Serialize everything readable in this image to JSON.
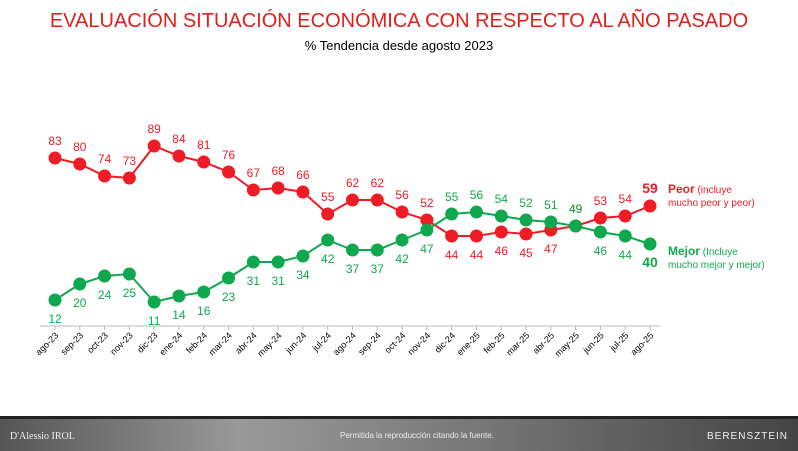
{
  "chart_data": {
    "type": "line",
    "title": "EVALUACIÓN SITUACIÓN ECONÓMICA CON RESPECTO AL AÑO PASADO",
    "subtitle": "% Tendencia desde agosto 2023",
    "categories": [
      "ago-23",
      "sep-23",
      "oct-23",
      "nov-23",
      "dic-23",
      "ene-24",
      "feb-24",
      "mar-24",
      "abr-24",
      "may-24",
      "jun-24",
      "jul-24",
      "ago-24",
      "sep-24",
      "oct-24",
      "nov-24",
      "dic-24",
      "ene-25",
      "feb-25",
      "mar-25",
      "abr-25",
      "may-25",
      "jun-25",
      "jul-25",
      "ago-25"
    ],
    "series": [
      {
        "name": "Peor",
        "color": "#ee1c25",
        "values": [
          83,
          80,
          74,
          73,
          89,
          84,
          81,
          76,
          67,
          68,
          66,
          55,
          62,
          62,
          56,
          52,
          44,
          44,
          46,
          45,
          47,
          49,
          53,
          54,
          59
        ]
      },
      {
        "name": "Mejor",
        "color": "#10a84e",
        "values": [
          12,
          20,
          24,
          25,
          11,
          14,
          16,
          23,
          31,
          31,
          34,
          42,
          37,
          37,
          42,
          47,
          55,
          56,
          54,
          52,
          51,
          49,
          46,
          44,
          40
        ]
      }
    ],
    "grid": false,
    "legend": "right"
  },
  "legend": {
    "peor_bold": "Peor",
    "peor_rest": " (incluye",
    "peor_line2": "mucho peor y peor)",
    "mejor_bold": "Mejor",
    "mejor_rest": " (Incluye",
    "mejor_line2": "mucho mejor y mejor)"
  },
  "footer": {
    "left": "D'Alessio IROL",
    "center": "Permitida la reproducción citando la fuente.",
    "right": "BERENSZTEIN"
  }
}
